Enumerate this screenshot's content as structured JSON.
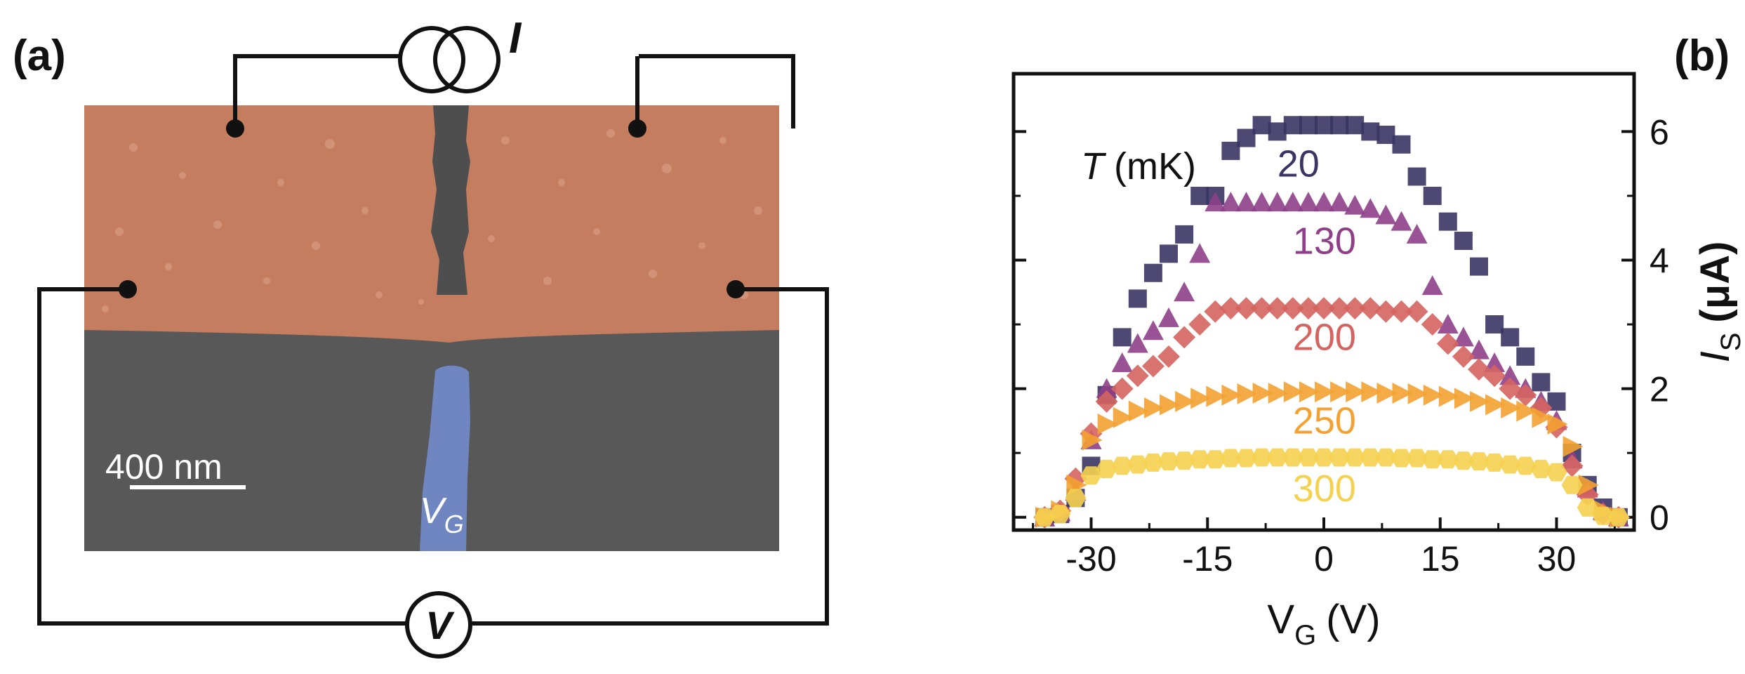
{
  "panel_a": {
    "label": "(a)",
    "current_symbol": "I",
    "voltage_symbol": "V",
    "scale_bar_label": "400 nm",
    "gate_label_main": "V",
    "gate_label_sub": "G",
    "colors": {
      "electrode": "#c57d5f",
      "substrate": "#575757",
      "gate": "#6f86c1",
      "wire": "#111111"
    }
  },
  "panel_b": {
    "label": "(b)",
    "temperature_header_italic": "T",
    "temperature_header_unit": "(mK)",
    "xlabel_main": "V",
    "xlabel_sub": "G",
    "xlabel_unit": "(V)",
    "ylabel_main": "I",
    "ylabel_sub": "S",
    "ylabel_unit": "(μA)"
  },
  "chart_data": {
    "type": "scatter",
    "title": "",
    "xlabel": "V_G (V)",
    "ylabel": "I_S (μA)",
    "xlim": [
      -40,
      40
    ],
    "ylim": [
      -0.2,
      6.9
    ],
    "xticks": [
      -30,
      -15,
      0,
      15,
      30
    ],
    "yticks": [
      0,
      2,
      4,
      6
    ],
    "legend_title": "T (mK)",
    "series": [
      {
        "name": "20",
        "marker": "square",
        "color": "#3a3563",
        "label_color": "#3a3563",
        "label_pos": [
          -6,
          5.3
        ],
        "x": [
          -36,
          -34,
          -32,
          -30,
          -28,
          -26,
          -24,
          -22,
          -20,
          -18,
          -16,
          -14,
          -12,
          -10,
          -8,
          -6,
          -4,
          -2,
          0,
          2,
          4,
          6,
          8,
          10,
          12,
          14,
          16,
          18,
          20,
          22,
          24,
          26,
          28,
          30,
          32,
          34,
          36,
          38
        ],
        "y": [
          0,
          0.05,
          0.3,
          0.8,
          1.9,
          2.8,
          3.4,
          3.8,
          4.1,
          4.4,
          5.0,
          5.0,
          5.7,
          5.9,
          6.1,
          6.0,
          6.1,
          6.1,
          6.1,
          6.1,
          6.1,
          6.0,
          5.95,
          5.8,
          5.3,
          5.0,
          4.6,
          4.3,
          3.9,
          3.0,
          2.8,
          2.5,
          2.1,
          1.8,
          1.0,
          0.5,
          0.15,
          0
        ]
      },
      {
        "name": "130",
        "marker": "triangle-up",
        "color": "#8e3f88",
        "label_color": "#8e3f88",
        "label_pos": [
          -4,
          4.1
        ],
        "x": [
          -36,
          -34,
          -32,
          -30,
          -28,
          -26,
          -24,
          -22,
          -20,
          -18,
          -16,
          -14,
          -12,
          -10,
          -8,
          -6,
          -4,
          -2,
          0,
          2,
          4,
          6,
          8,
          10,
          12,
          14,
          16,
          18,
          20,
          22,
          24,
          26,
          28,
          30,
          32,
          34,
          36,
          38
        ],
        "y": [
          0,
          0.08,
          0.4,
          1.2,
          2.0,
          2.4,
          2.7,
          2.9,
          3.1,
          3.5,
          4.1,
          4.9,
          4.9,
          4.9,
          4.9,
          4.9,
          4.9,
          4.9,
          4.9,
          4.9,
          4.85,
          4.8,
          4.7,
          4.6,
          4.4,
          3.6,
          3.0,
          2.8,
          2.6,
          2.4,
          2.2,
          2.0,
          1.8,
          1.5,
          0.9,
          0.45,
          0.1,
          0
        ]
      },
      {
        "name": "200",
        "marker": "diamond",
        "color": "#d56460",
        "label_color": "#d56460",
        "label_pos": [
          -4,
          2.6
        ],
        "x": [
          -36,
          -34,
          -32,
          -30,
          -28,
          -26,
          -24,
          -22,
          -20,
          -18,
          -16,
          -14,
          -12,
          -10,
          -8,
          -6,
          -4,
          -2,
          0,
          2,
          4,
          6,
          8,
          10,
          12,
          14,
          16,
          18,
          20,
          22,
          24,
          26,
          28,
          30,
          32,
          34,
          36,
          38
        ],
        "y": [
          0,
          0.1,
          0.6,
          1.3,
          1.8,
          2.0,
          2.2,
          2.35,
          2.5,
          2.8,
          3.0,
          3.2,
          3.25,
          3.25,
          3.25,
          3.25,
          3.25,
          3.25,
          3.25,
          3.25,
          3.25,
          3.25,
          3.2,
          3.2,
          3.2,
          3.0,
          2.7,
          2.5,
          2.3,
          2.2,
          2.0,
          1.9,
          1.7,
          1.4,
          0.8,
          0.35,
          0.05,
          0
        ]
      },
      {
        "name": "250",
        "marker": "triangle-right",
        "color": "#f3a231",
        "label_color": "#f3a231",
        "label_pos": [
          -4,
          1.3
        ],
        "x": [
          -36,
          -34,
          -32,
          -30,
          -28,
          -26,
          -24,
          -22,
          -20,
          -18,
          -16,
          -14,
          -12,
          -10,
          -8,
          -6,
          -4,
          -2,
          0,
          2,
          4,
          6,
          8,
          10,
          12,
          14,
          16,
          18,
          20,
          22,
          24,
          26,
          28,
          30,
          32,
          34,
          36,
          38
        ],
        "y": [
          0,
          0.1,
          0.5,
          1.2,
          1.45,
          1.55,
          1.65,
          1.7,
          1.75,
          1.8,
          1.85,
          1.88,
          1.9,
          1.92,
          1.93,
          1.93,
          1.95,
          1.95,
          1.95,
          1.95,
          1.95,
          1.95,
          1.93,
          1.93,
          1.92,
          1.9,
          1.88,
          1.85,
          1.8,
          1.75,
          1.7,
          1.65,
          1.55,
          1.45,
          1.1,
          0.5,
          0.1,
          0
        ]
      },
      {
        "name": "300",
        "marker": "hexagon",
        "color": "#f5d150",
        "label_color": "#f5d150",
        "label_pos": [
          -4,
          0.25
        ],
        "x": [
          -36,
          -34,
          -32,
          -30,
          -28,
          -26,
          -24,
          -22,
          -20,
          -18,
          -16,
          -14,
          -12,
          -10,
          -8,
          -6,
          -4,
          -2,
          0,
          2,
          4,
          6,
          8,
          10,
          12,
          14,
          16,
          18,
          20,
          22,
          24,
          26,
          28,
          30,
          32,
          34,
          36,
          38
        ],
        "y": [
          0,
          0.05,
          0.3,
          0.65,
          0.75,
          0.8,
          0.82,
          0.85,
          0.87,
          0.88,
          0.9,
          0.9,
          0.92,
          0.92,
          0.93,
          0.93,
          0.93,
          0.93,
          0.93,
          0.93,
          0.93,
          0.93,
          0.93,
          0.92,
          0.92,
          0.9,
          0.9,
          0.88,
          0.87,
          0.85,
          0.82,
          0.8,
          0.75,
          0.7,
          0.5,
          0.15,
          0.02,
          0
        ]
      }
    ]
  }
}
